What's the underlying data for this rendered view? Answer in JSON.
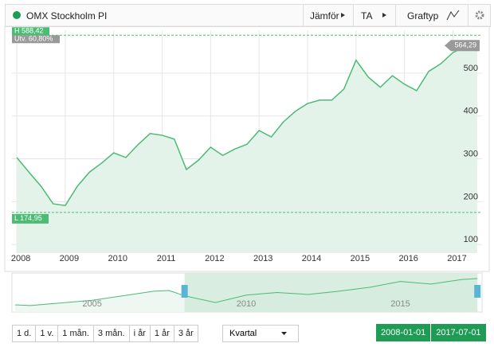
{
  "toolbar": {
    "compare": "Jämför",
    "ta": "TA",
    "chart_type": "Graftyp"
  },
  "chart_data": [
    {
      "type": "area",
      "title": "OMX Stockholm PI",
      "color": "#4cbb74",
      "fill": "#e4f3ea",
      "x": [
        2008,
        2008.25,
        2008.5,
        2008.75,
        2009,
        2009.25,
        2009.5,
        2009.75,
        2010,
        2010.25,
        2010.5,
        2010.75,
        2011,
        2011.25,
        2011.5,
        2011.75,
        2012,
        2012.25,
        2012.5,
        2012.75,
        2013,
        2013.25,
        2013.5,
        2013.75,
        2014,
        2014.25,
        2014.5,
        2014.75,
        2015,
        2015.25,
        2015.5,
        2015.75,
        2016,
        2016.25,
        2016.5,
        2016.75,
        2017,
        2017.25,
        2017.5
      ],
      "values": [
        303,
        269,
        236,
        195,
        191,
        236,
        269,
        290,
        314,
        303,
        333,
        359,
        355,
        346,
        275,
        297,
        327,
        308,
        323,
        334,
        366,
        351,
        386,
        411,
        429,
        437,
        437,
        463,
        530,
        491,
        467,
        494,
        474,
        459,
        504,
        522,
        548,
        561,
        552
      ],
      "xlim": [
        2007.9,
        2017.6
      ],
      "xticks": [
        2008,
        2009,
        2010,
        2011,
        2012,
        2013,
        2014,
        2015,
        2016,
        2017
      ],
      "ylim": [
        80,
        600
      ],
      "yticks": [
        100,
        200,
        300,
        400,
        500
      ],
      "grid": true,
      "annotations": {
        "high": {
          "value": 588.42,
          "label": "H 588,42"
        },
        "change": "Utv. 60,80%",
        "low": {
          "value": 174.95,
          "label": "L 174,95"
        },
        "last": {
          "value": 564.29,
          "label": "564,29"
        }
      }
    },
    {
      "type": "area",
      "color": "#4cbb74",
      "fill": "#eef7f1",
      "selected_fill": "#cfe9d9",
      "x": [
        2002.5,
        2003,
        2004,
        2005,
        2006,
        2007,
        2007.5,
        2008,
        2009,
        2010,
        2011,
        2012,
        2013,
        2014,
        2015,
        2016,
        2017,
        2017.5
      ],
      "values": [
        160,
        150,
        190,
        230,
        300,
        370,
        380,
        300,
        195,
        310,
        350,
        320,
        370,
        430,
        520,
        480,
        550,
        564
      ],
      "xlim": [
        2002.4,
        2017.65
      ],
      "xticks": [
        2005,
        2010,
        2015
      ],
      "ylim": [
        50,
        650
      ],
      "selection": [
        2008,
        2017.5
      ]
    }
  ],
  "range_buttons": [
    "1 d.",
    "1 v.",
    "1 mån.",
    "3 mån.",
    "i år",
    "1 år",
    "3 år"
  ],
  "period": "Kvartal",
  "date_range": [
    "2008-01-01",
    "2017-07-01"
  ]
}
